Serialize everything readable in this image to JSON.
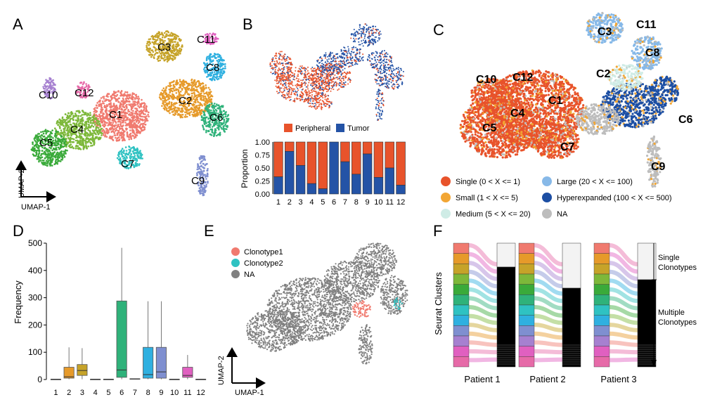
{
  "panel_letters": [
    "A",
    "B",
    "C",
    "D",
    "E",
    "F"
  ],
  "panelA": {
    "clusters": [
      {
        "name": "C1",
        "color": "#f07a6f"
      },
      {
        "name": "C2",
        "color": "#e69a2a"
      },
      {
        "name": "C3",
        "color": "#c6a329"
      },
      {
        "name": "C4",
        "color": "#7db83a"
      },
      {
        "name": "C5",
        "color": "#3aaa3a"
      },
      {
        "name": "C6",
        "color": "#2fb27a"
      },
      {
        "name": "C7",
        "color": "#2fc2c2"
      },
      {
        "name": "C8",
        "color": "#2fb0e0"
      },
      {
        "name": "C9",
        "color": "#7f8fd0"
      },
      {
        "name": "C10",
        "color": "#a680d0"
      },
      {
        "name": "C11",
        "color": "#e060c0"
      },
      {
        "name": "C12",
        "color": "#e66aa8"
      }
    ],
    "axis_y": "UMAP-2",
    "axis_x": "UMAP-1"
  },
  "panelB": {
    "legend": [
      {
        "label": "Peripheral",
        "color": "#e8532b"
      },
      {
        "label": "Tumor",
        "color": "#2453a6"
      }
    ],
    "chart_data": {
      "type": "bar",
      "stacked": true,
      "categories": [
        "1",
        "2",
        "3",
        "4",
        "5",
        "6",
        "7",
        "8",
        "9",
        "10",
        "11",
        "12"
      ],
      "series": [
        {
          "name": "Tumor",
          "values": [
            0.33,
            0.82,
            0.55,
            0.2,
            0.1,
            1.0,
            0.62,
            0.38,
            0.77,
            0.32,
            0.5,
            0.17
          ]
        },
        {
          "name": "Peripheral",
          "values": [
            0.67,
            0.18,
            0.45,
            0.8,
            0.9,
            0.0,
            0.38,
            0.62,
            0.23,
            0.68,
            0.5,
            0.83
          ]
        }
      ],
      "ylabel": "Proportion",
      "ylim": [
        0,
        1
      ],
      "yticks": [
        "0.00",
        "0.25",
        "0.50",
        "0.75",
        "1.00"
      ]
    }
  },
  "panelC": {
    "cluster_labels": [
      "C1",
      "C2",
      "C3",
      "C4",
      "C5",
      "C6",
      "C7",
      "C8",
      "C9",
      "C10",
      "C11",
      "C12"
    ],
    "legend": [
      {
        "label": "Single (0 < X <= 1)",
        "color": "#e8532b"
      },
      {
        "label": "Small (1 < X <= 5)",
        "color": "#f2a634"
      },
      {
        "label": "Medium (5 < X <= 20)",
        "color": "#cfece6"
      },
      {
        "label": "Large (20 < X <= 100)",
        "color": "#87b9e8"
      },
      {
        "label": "Hyperexpanded (100 < X <= 500)",
        "color": "#1c4ea3"
      },
      {
        "label": "NA",
        "color": "#bdbdbd"
      }
    ]
  },
  "panelD": {
    "chart_data": {
      "type": "box",
      "categories": [
        "1",
        "2",
        "3",
        "4",
        "5",
        "6",
        "7",
        "8",
        "9",
        "10",
        "11",
        "12"
      ],
      "ylabel": "Frequency",
      "ylim": [
        0,
        500
      ],
      "yticks": [
        "0",
        "100",
        "200",
        "300",
        "400",
        "500"
      ],
      "boxes": [
        {
          "cat": "1",
          "min": 1,
          "q1": 1,
          "median": 1,
          "q3": 1,
          "max": 1,
          "color": "#f07a6f"
        },
        {
          "cat": "2",
          "min": 1,
          "q1": 5,
          "median": 10,
          "q3": 45,
          "max": 118,
          "color": "#e69a2a"
        },
        {
          "cat": "3",
          "min": 1,
          "q1": 15,
          "median": 33,
          "q3": 55,
          "max": 115,
          "color": "#c6a329"
        },
        {
          "cat": "4",
          "min": 1,
          "q1": 1,
          "median": 1,
          "q3": 1,
          "max": 1,
          "color": "#7db83a"
        },
        {
          "cat": "5",
          "min": 1,
          "q1": 1,
          "median": 1,
          "q3": 1,
          "max": 1,
          "color": "#3aaa3a"
        },
        {
          "cat": "6",
          "min": 1,
          "q1": 8,
          "median": 35,
          "q3": 288,
          "max": 483,
          "color": "#2fb27a"
        },
        {
          "cat": "7",
          "min": 1,
          "q1": 1,
          "median": 2,
          "q3": 3,
          "max": 3,
          "color": "#2fc2c2"
        },
        {
          "cat": "8",
          "min": 1,
          "q1": 5,
          "median": 18,
          "q3": 118,
          "max": 287,
          "color": "#2fb0e0"
        },
        {
          "cat": "9",
          "min": 1,
          "q1": 5,
          "median": 28,
          "q3": 118,
          "max": 287,
          "color": "#7f8fd0"
        },
        {
          "cat": "10",
          "min": 1,
          "q1": 1,
          "median": 1,
          "q3": 1,
          "max": 1,
          "color": "#a680d0"
        },
        {
          "cat": "11",
          "min": 1,
          "q1": 8,
          "median": 15,
          "q3": 45,
          "max": 90,
          "color": "#e060c0"
        },
        {
          "cat": "12",
          "min": 1,
          "q1": 1,
          "median": 1,
          "q3": 1,
          "max": 1,
          "color": "#e66aa8"
        }
      ]
    }
  },
  "panelE": {
    "legend": [
      {
        "label": "Clonotype1",
        "color": "#f07a6f"
      },
      {
        "label": "Clonotype2",
        "color": "#2fc2c2"
      },
      {
        "label": "NA",
        "color": "#808080"
      }
    ],
    "axis_y": "UMAP-2",
    "axis_x": "UMAP-1"
  },
  "panelF": {
    "ylabel": "Seurat Clusters",
    "patients": [
      "Patient 1",
      "Patient 2",
      "Patient 3"
    ],
    "annotation_single": "Single\nClonotypes",
    "annotation_multiple": "Multiple\nClonotypes",
    "cluster_colors": [
      "#e66aa8",
      "#e060c0",
      "#a680d0",
      "#7f8fd0",
      "#2fb0e0",
      "#2fc2c2",
      "#2fb27a",
      "#3aaa3a",
      "#7db83a",
      "#c6a329",
      "#e69a2a",
      "#f07a6f"
    ]
  }
}
